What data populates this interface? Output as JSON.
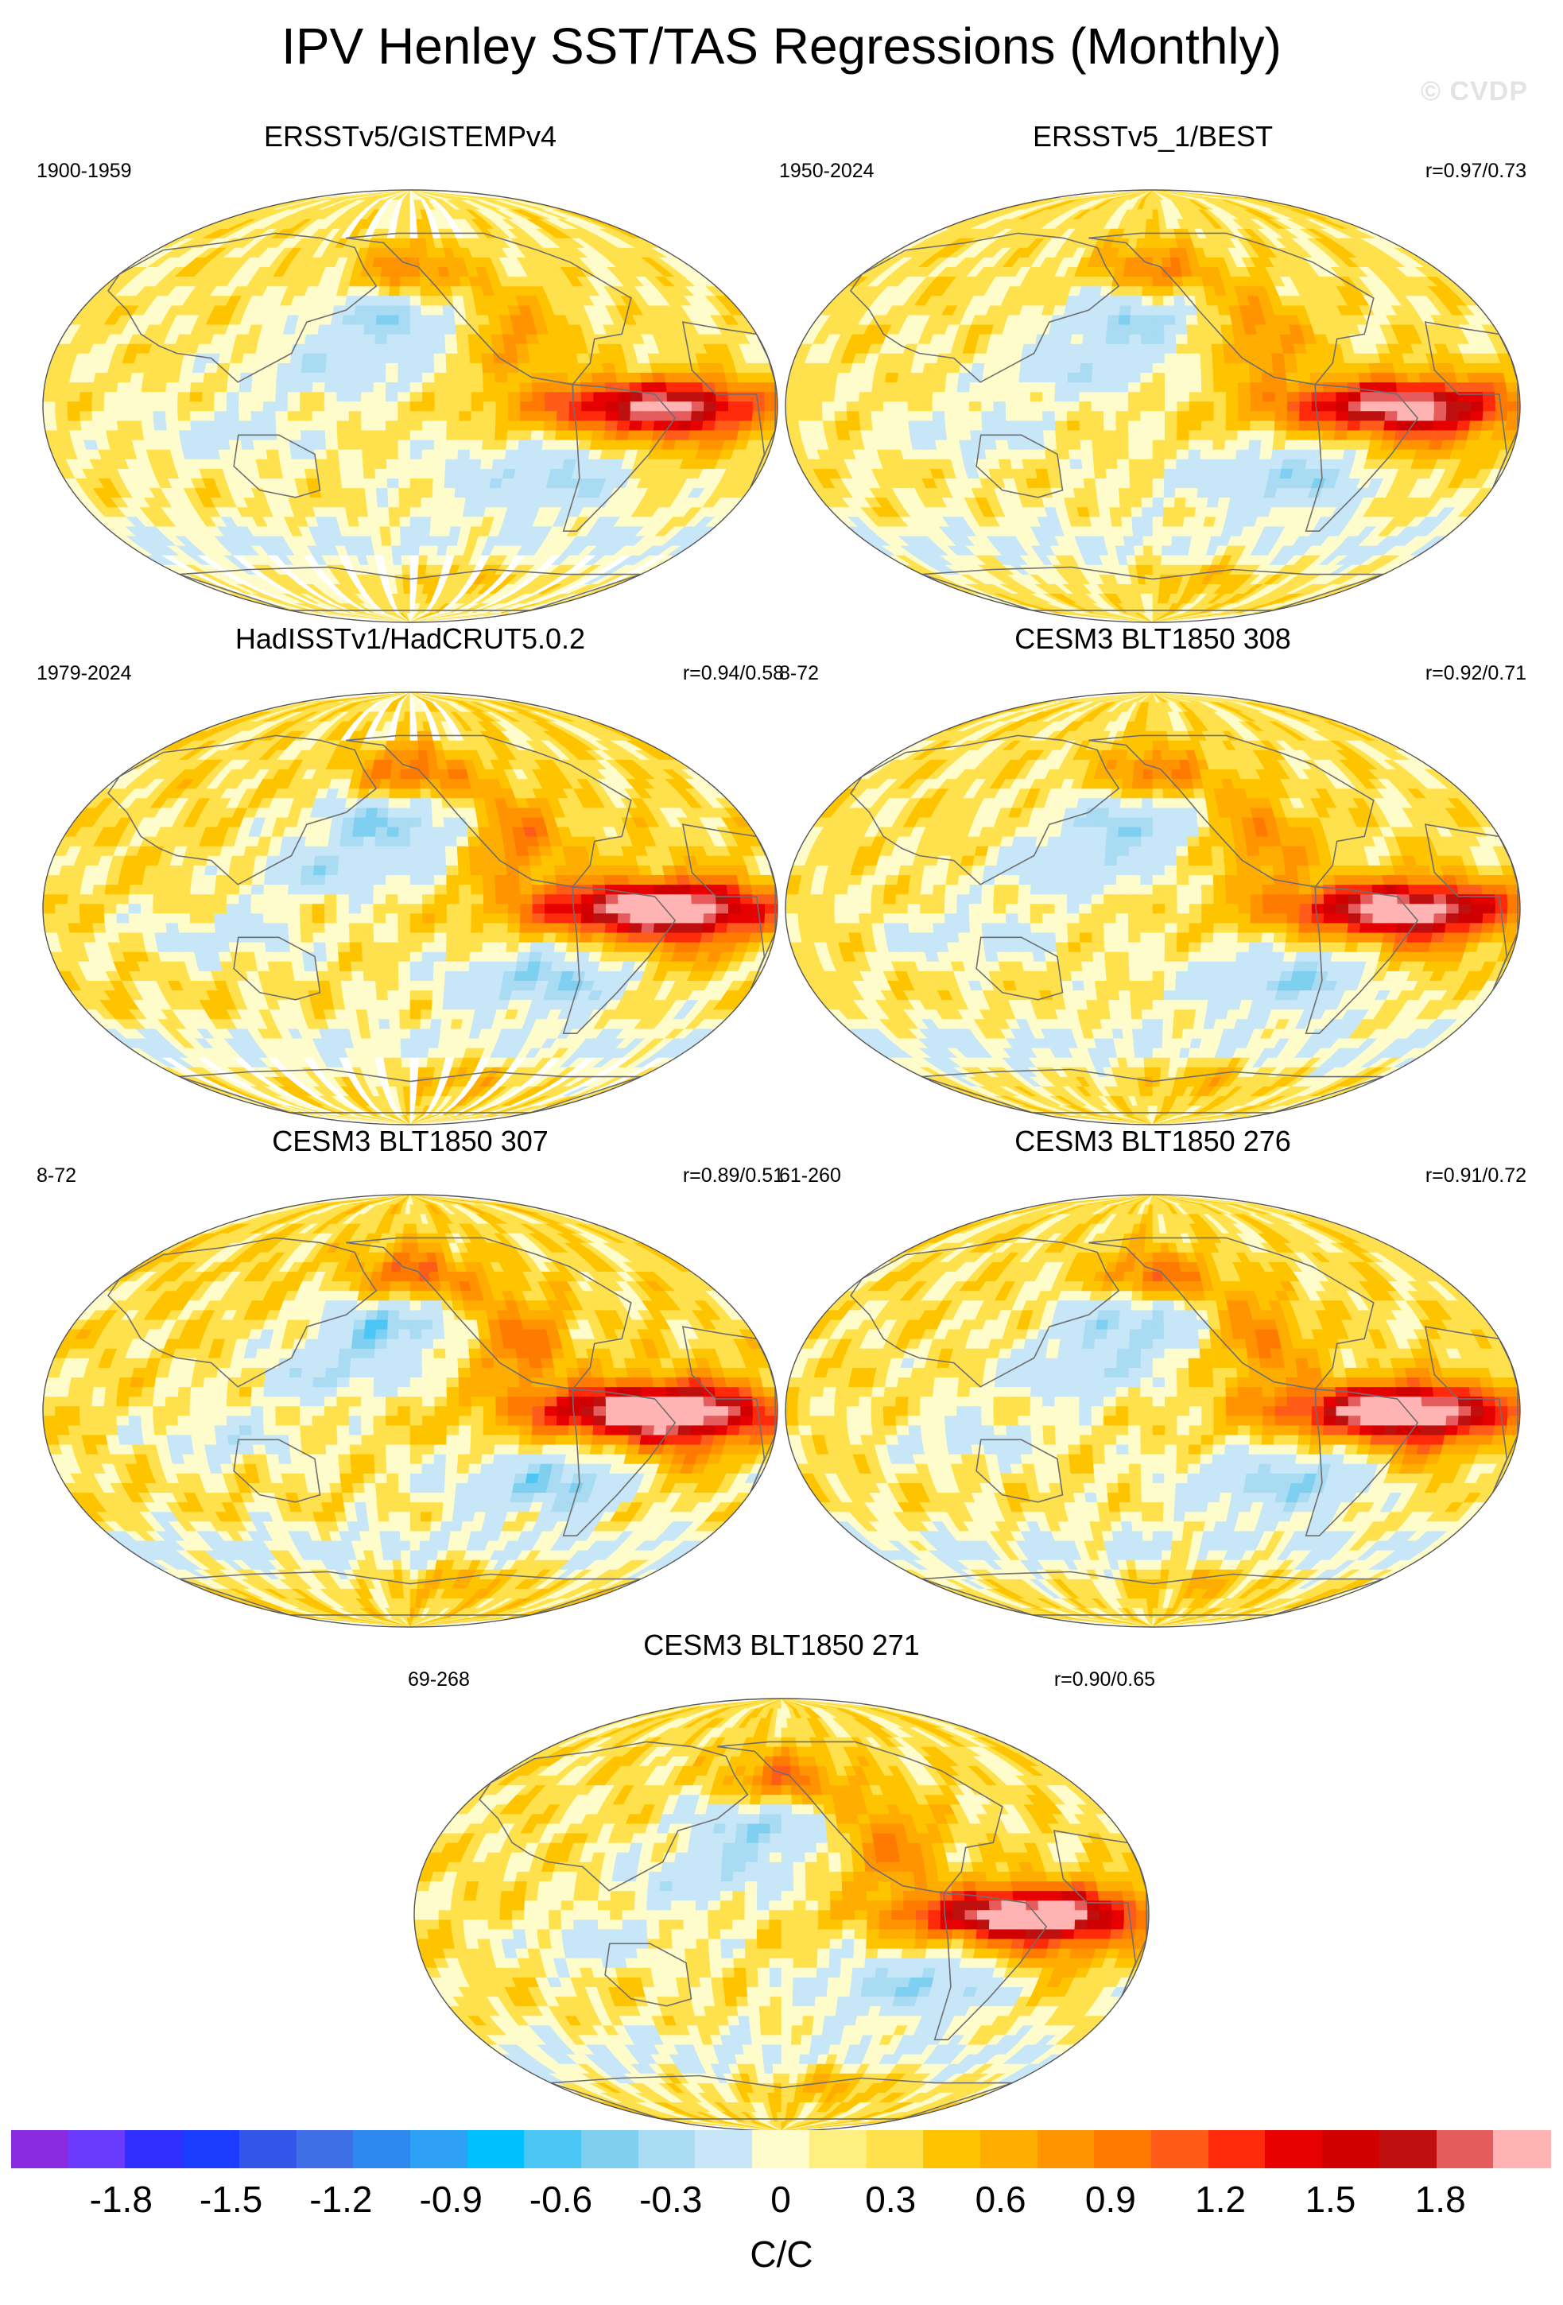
{
  "title": "IPV Henley SST/TAS Regressions (Monthly)",
  "watermark": "© CVDP",
  "panels": [
    {
      "title": "ERSSTv5/GISTEMPv4",
      "period": "1900-1959",
      "corr": "",
      "data_gaps": true,
      "strength": 0.85
    },
    {
      "title": "ERSSTv5_1/BEST",
      "period": "1950-2024",
      "corr": "r=0.97/0.73",
      "data_gaps": false,
      "strength": 0.9
    },
    {
      "title": "HadISSTv1/HadCRUT5.0.2",
      "period": "1979-2024",
      "corr": "r=0.94/0.58",
      "data_gaps": true,
      "strength": 1.05
    },
    {
      "title": "CESM3 BLT1850 308",
      "period": "8-72",
      "corr": "r=0.92/0.71",
      "data_gaps": false,
      "strength": 0.95
    },
    {
      "title": "CESM3 BLT1850 307",
      "period": "8-72",
      "corr": "r=0.89/0.51",
      "data_gaps": false,
      "strength": 1.1
    },
    {
      "title": "CESM3 BLT1850 276",
      "period": "61-260",
      "corr": "r=0.91/0.72",
      "data_gaps": false,
      "strength": 1.0
    },
    {
      "title": "CESM3 BLT1850 271",
      "period": "69-268",
      "corr": "r=0.90/0.65",
      "data_gaps": false,
      "strength": 1.0
    }
  ],
  "colorbar": {
    "units": "C/C",
    "labels": [
      "-1.8",
      "-1.5",
      "-1.2",
      "-0.9",
      "-0.6",
      "-0.3",
      "0",
      "0.3",
      "0.6",
      "0.9",
      "1.2",
      "1.5",
      "1.8"
    ],
    "label_values": [
      -1.8,
      -1.5,
      -1.2,
      -0.9,
      -0.6,
      -0.3,
      0,
      0.3,
      0.6,
      0.9,
      1.2,
      1.5,
      1.8
    ],
    "min": -2.1,
    "max": 2.1,
    "step": 0.15,
    "colors": [
      "#8a2be2",
      "#6a3aff",
      "#2f2fff",
      "#1a3cff",
      "#3355e8",
      "#3f6fe6",
      "#2f87f0",
      "#2ea0f5",
      "#00bfff",
      "#4cc6f5",
      "#7fd0f0",
      "#a9dbf2",
      "#c7e6f7",
      "#fffccc",
      "#ffef80",
      "#ffe14d",
      "#ffc400",
      "#ffad00",
      "#ff9400",
      "#ff7a00",
      "#ff5c1a",
      "#ff2a0a",
      "#e60000",
      "#d10000",
      "#bf1010",
      "#e65c5c",
      "#ffb3b3"
    ]
  }
}
